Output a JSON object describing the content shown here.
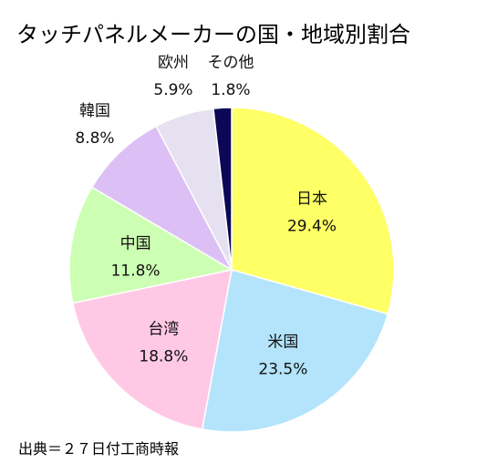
{
  "chart_data": {
    "type": "pie",
    "title": "タッチパネルメーカーの国・地域別割合",
    "source": "出典＝２７日付工商時報",
    "slices": [
      {
        "label": "日本",
        "value": 29.4,
        "value_label": "29.4%",
        "color": "#ffff66"
      },
      {
        "label": "米国",
        "value": 23.5,
        "value_label": "23.5%",
        "color": "#b3e4fb"
      },
      {
        "label": "台湾",
        "value": 18.8,
        "value_label": "18.8%",
        "color": "#ffc9e6"
      },
      {
        "label": "中国",
        "value": 11.8,
        "value_label": "11.8%",
        "color": "#ccffb3"
      },
      {
        "label": "韓国",
        "value": 8.8,
        "value_label": "8.8%",
        "color": "#dcc0f5"
      },
      {
        "label": "欧州",
        "value": 5.9,
        "value_label": "5.9%",
        "color": "#e6e1f0"
      },
      {
        "label": "その他",
        "value": 1.8,
        "value_label": "1.8%",
        "color": "#0d0856"
      }
    ],
    "start_angle": "12 o'clock",
    "direction": "clockwise",
    "legend": "none"
  }
}
